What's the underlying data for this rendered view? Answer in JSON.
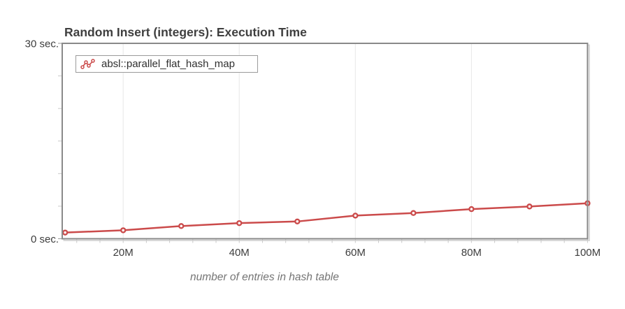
{
  "chart_data": {
    "type": "line",
    "title": "Random Insert (integers): Execution Time",
    "xlabel": "number of entries in hash table",
    "ylabel": "",
    "x_unit": "millions of entries",
    "y_unit": "seconds",
    "xlim": [
      9.5,
      100
    ],
    "ylim": [
      0,
      30
    ],
    "grid": "vertical-only",
    "legend_position": "top-left-inside",
    "x_tick_values": [
      20,
      40,
      60,
      80,
      100
    ],
    "x_tick_labels": [
      "20M",
      "40M",
      "60M",
      "80M",
      "100M"
    ],
    "x_minor_tick_step": 4,
    "y_tick_values": [
      0,
      30
    ],
    "y_tick_labels": [
      "0 sec.",
      "30 sec."
    ],
    "y_minor_tick_step": 5,
    "series": [
      {
        "name": "absl::parallel_flat_hash_map",
        "color": "#cb4b4b",
        "marker": "circle-open",
        "x": [
          10,
          20,
          30,
          40,
          50,
          60,
          70,
          80,
          90,
          100
        ],
        "values": [
          0.95,
          1.3,
          1.95,
          2.4,
          2.65,
          3.55,
          3.95,
          4.55,
          4.95,
          5.45
        ]
      }
    ]
  },
  "colors": {
    "line": "#cb4b4b",
    "grid": "#e7e7e7",
    "plot_border": "#8a8a8a",
    "plot_shadow": "#d8d8d8",
    "minor_tick": "#c9c9c9",
    "major_tick": "#9a9a9a",
    "tick_text": "#3d3d3d",
    "axis_title_text": "#757575",
    "title_text": "#3f3f3f"
  }
}
